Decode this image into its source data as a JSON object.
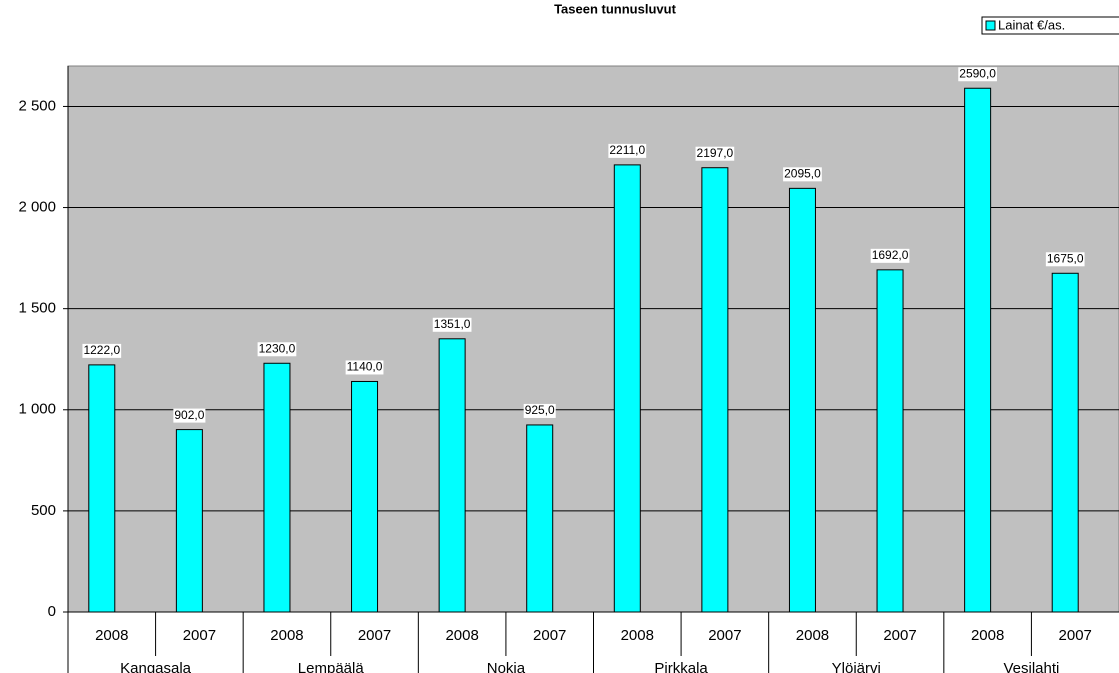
{
  "chart_data": {
    "type": "bar",
    "title": "Taseen tunnusluvut",
    "categories": [
      "2008",
      "2007",
      "2008",
      "2007",
      "2008",
      "2007",
      "2008",
      "2007",
      "2008",
      "2007",
      "2008",
      "2007"
    ],
    "groups": [
      "Kangasala",
      "Lempäälä",
      "Nokia",
      "Pirkkala",
      "Ylöjärvi",
      "Vesilahti"
    ],
    "series": [
      {
        "name": "Lainat €/as.",
        "color": "#00ffff",
        "values": [
          1222,
          902,
          1230,
          1140,
          1351,
          925,
          2211,
          2197,
          2095,
          1692,
          2590,
          1675
        ],
        "value_labels": [
          "1222,0",
          "902,0",
          "1230,0",
          "1140,0",
          "1351,0",
          "925,0",
          "2211,0",
          "2197,0",
          "2095,0",
          "1692,0",
          "2590,0",
          "1675,0"
        ]
      }
    ],
    "ylim": [
      0,
      2700
    ],
    "yticks": [
      0,
      500,
      {
        "value": 1000,
        "label": "1 000"
      },
      {
        "value": 1500,
        "label": "1 500"
      },
      {
        "value": 2000,
        "label": "2 000"
      },
      {
        "value": 2500,
        "label": "2 500"
      }
    ],
    "grid": true,
    "legend": "top-right"
  }
}
